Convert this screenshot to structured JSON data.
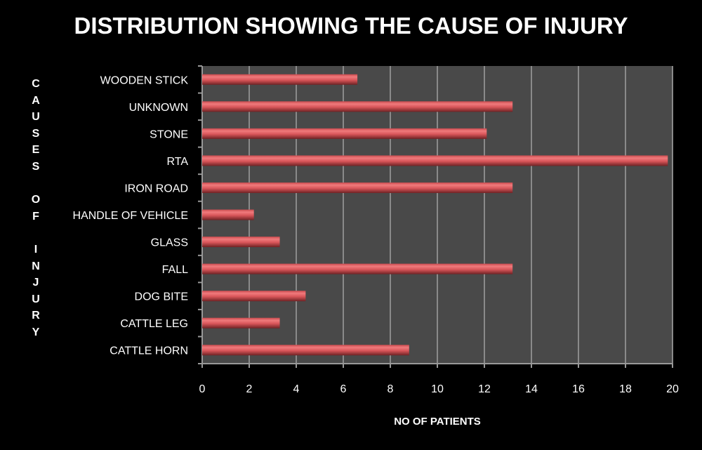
{
  "chart_data": {
    "type": "bar",
    "orientation": "horizontal",
    "title": "DISTRIBUTION SHOWING THE CAUSE OF INJURY",
    "xlabel": "NO OF PATIENTS",
    "ylabel": "CAUSES OF INJURY",
    "categories": [
      "WOODEN STICK",
      "UNKNOWN",
      "STONE",
      "RTA",
      "IRON ROAD",
      "HANDLE OF VEHICLE",
      "GLASS",
      "FALL",
      "DOG BITE",
      "CATTLE LEG",
      "CATTLE HORN"
    ],
    "values": [
      6.6,
      13.2,
      12.1,
      19.8,
      13.2,
      2.2,
      3.3,
      13.2,
      4.4,
      3.3,
      8.8
    ],
    "xlim": [
      0,
      20
    ],
    "xticks": [
      "0",
      "2",
      "4",
      "6",
      "8",
      "10",
      "12",
      "14",
      "16",
      "18",
      "20"
    ],
    "grid": true,
    "colors": {
      "bar": "#d9565a",
      "plot_bg": "#494949",
      "grid": "#8a8a8a",
      "background": "#000000"
    }
  }
}
